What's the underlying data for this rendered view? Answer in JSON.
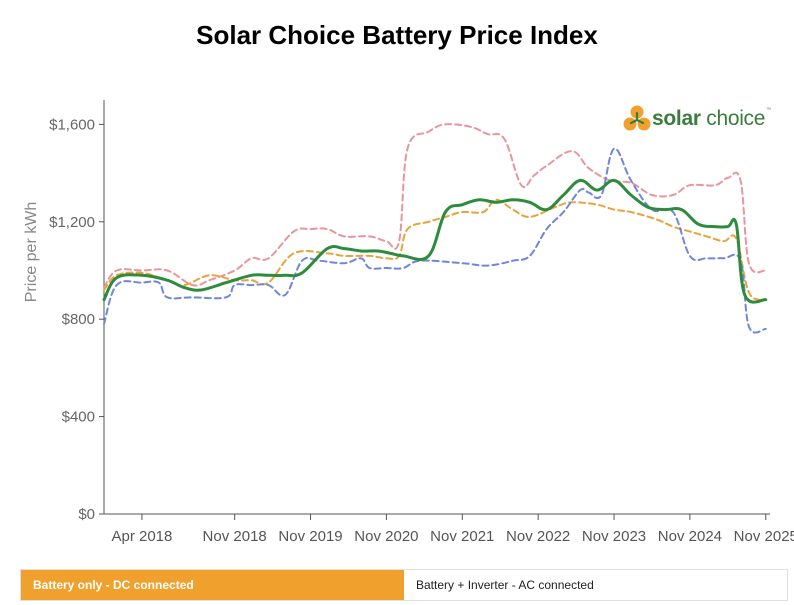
{
  "title": "Solar Choice Battery Price Index",
  "brand": {
    "name_bold": "solar",
    "name_rest": " choice",
    "tm": "™"
  },
  "tabs": [
    {
      "label": "Battery only - DC connected",
      "active": true
    },
    {
      "label": "Battery + Inverter - AC connected",
      "active": false
    }
  ],
  "colors": {
    "accent": "#f0a02d",
    "green": "#2e8b3e",
    "orange": "#e8a33a",
    "pink": "#e8969b",
    "blue": "#6f86dd"
  },
  "chart_data": {
    "type": "line",
    "title": "Solar Choice Battery Price Index",
    "ylabel": "Price per kWh",
    "xlabel": "",
    "ylim": [
      0,
      1700
    ],
    "xlim": [
      2017.95,
      2025.85
    ],
    "yticks": [
      0,
      400,
      800,
      1200,
      1600
    ],
    "ytick_labels": [
      "$0",
      "$400",
      "$800",
      "$1,200",
      "$1,600"
    ],
    "xticks": [
      {
        "x": 2018.4,
        "label": "Apr 2018"
      },
      {
        "x": 2019.5,
        "label": "Nov 2018"
      },
      {
        "x": 2020.4,
        "label": "Nov 2019"
      },
      {
        "x": 2021.3,
        "label": "Nov 2020"
      },
      {
        "x": 2022.2,
        "label": "Nov 2021"
      },
      {
        "x": 2023.1,
        "label": "Nov 2022"
      },
      {
        "x": 2024.0,
        "label": "Nov 2023"
      },
      {
        "x": 2024.9,
        "label": "Nov 2024"
      },
      {
        "x": 2025.8,
        "label": "Nov 2025"
      }
    ],
    "series": [
      {
        "name": "Pink (dashed)",
        "color": "#e8969b",
        "dashed": true,
        "width": 2,
        "x": [
          2017.95,
          2018.1,
          2018.4,
          2018.7,
          2019.0,
          2019.2,
          2019.5,
          2019.7,
          2019.9,
          2020.2,
          2020.4,
          2020.6,
          2020.8,
          2021.1,
          2021.3,
          2021.45,
          2021.55,
          2021.8,
          2022.0,
          2022.3,
          2022.5,
          2022.7,
          2022.9,
          2023.05,
          2023.2,
          2023.5,
          2023.7,
          2023.95,
          2024.2,
          2024.45,
          2024.7,
          2024.9,
          2025.2,
          2025.35,
          2025.5,
          2025.6,
          2025.8
        ],
        "y": [
          930,
          1000,
          1000,
          1000,
          940,
          960,
          1000,
          1050,
          1050,
          1160,
          1170,
          1170,
          1140,
          1140,
          1120,
          1120,
          1500,
          1570,
          1600,
          1590,
          1560,
          1540,
          1350,
          1390,
          1430,
          1490,
          1420,
          1370,
          1360,
          1310,
          1310,
          1350,
          1350,
          1380,
          1370,
          1030,
          1000
        ]
      },
      {
        "name": "Orange (dashed)",
        "color": "#e8a33a",
        "dashed": true,
        "width": 2,
        "x": [
          2017.95,
          2018.1,
          2018.4,
          2018.7,
          2018.9,
          2019.2,
          2019.5,
          2019.7,
          2019.9,
          2020.2,
          2020.6,
          2020.8,
          2021.1,
          2021.3,
          2021.45,
          2021.55,
          2021.8,
          2022.0,
          2022.2,
          2022.45,
          2022.6,
          2022.8,
          2023.0,
          2023.3,
          2023.5,
          2023.8,
          2024.0,
          2024.2,
          2024.5,
          2024.7,
          2024.9,
          2025.1,
          2025.3,
          2025.45,
          2025.6,
          2025.8
        ],
        "y": [
          920,
          980,
          990,
          960,
          940,
          980,
          960,
          960,
          950,
          1070,
          1070,
          1060,
          1060,
          1050,
          1060,
          1170,
          1200,
          1220,
          1240,
          1240,
          1290,
          1250,
          1220,
          1260,
          1280,
          1270,
          1250,
          1240,
          1210,
          1180,
          1160,
          1140,
          1120,
          1130,
          910,
          880
        ]
      },
      {
        "name": "Blue (dashed)",
        "color": "#6f86dd",
        "dashed": true,
        "width": 2,
        "x": [
          2017.95,
          2018.1,
          2018.4,
          2018.6,
          2018.7,
          2019.0,
          2019.4,
          2019.5,
          2019.7,
          2019.9,
          2020.1,
          2020.3,
          2020.5,
          2020.8,
          2021.0,
          2021.1,
          2021.3,
          2021.5,
          2021.7,
          2022.2,
          2022.5,
          2022.8,
          2023.0,
          2023.2,
          2023.4,
          2023.6,
          2023.7,
          2023.85,
          2024.0,
          2024.2,
          2024.45,
          2024.7,
          2024.9,
          2025.1,
          2025.3,
          2025.5,
          2025.6,
          2025.8
        ],
        "y": [
          780,
          940,
          950,
          950,
          890,
          890,
          890,
          940,
          940,
          940,
          900,
          1040,
          1040,
          1030,
          1050,
          1010,
          1010,
          1010,
          1040,
          1030,
          1020,
          1040,
          1060,
          1170,
          1240,
          1330,
          1320,
          1310,
          1500,
          1370,
          1250,
          1240,
          1060,
          1050,
          1050,
          1040,
          770,
          760
        ]
      },
      {
        "name": "Green (index)",
        "color": "#2e8b3e",
        "dashed": false,
        "width": 3,
        "x": [
          2017.95,
          2018.1,
          2018.4,
          2018.7,
          2018.9,
          2019.1,
          2019.4,
          2019.7,
          2019.9,
          2020.1,
          2020.3,
          2020.6,
          2020.8,
          2021.0,
          2021.2,
          2021.35,
          2021.5,
          2021.8,
          2022.0,
          2022.2,
          2022.4,
          2022.6,
          2022.8,
          2023.0,
          2023.2,
          2023.4,
          2023.6,
          2023.8,
          2024.0,
          2024.2,
          2024.4,
          2024.6,
          2024.8,
          2025.0,
          2025.2,
          2025.35,
          2025.45,
          2025.55,
          2025.8
        ],
        "y": [
          880,
          970,
          980,
          960,
          930,
          920,
          950,
          980,
          980,
          980,
          990,
          1090,
          1090,
          1080,
          1080,
          1070,
          1060,
          1060,
          1240,
          1270,
          1290,
          1280,
          1290,
          1280,
          1250,
          1310,
          1370,
          1330,
          1370,
          1310,
          1260,
          1250,
          1250,
          1190,
          1180,
          1180,
          1190,
          900,
          880
        ]
      }
    ]
  }
}
